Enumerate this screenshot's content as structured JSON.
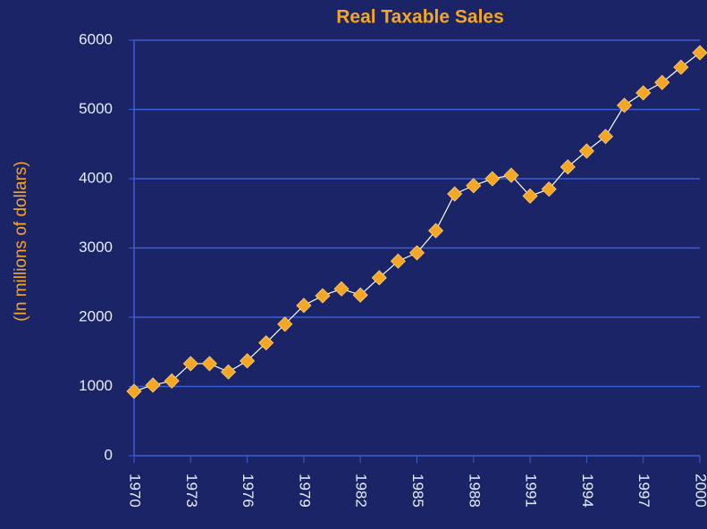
{
  "chart_data": {
    "type": "line",
    "title": "Real Taxable Sales",
    "y_label": "(In millions of dollars)",
    "x": [
      1970,
      1971,
      1972,
      1973,
      1974,
      1975,
      1976,
      1977,
      1978,
      1979,
      1980,
      1981,
      1982,
      1983,
      1984,
      1985,
      1986,
      1987,
      1988,
      1989,
      1990,
      1991,
      1992,
      1993,
      1994,
      1995,
      1996,
      1997,
      1998,
      1999,
      2000
    ],
    "series": [
      {
        "color": "#f5a623",
        "line_color": "#ffffff",
        "values": [
          930,
          1020,
          1080,
          1330,
          1330,
          1210,
          1370,
          1630,
          1900,
          2170,
          2310,
          2410,
          2320,
          2570,
          2810,
          2930,
          3250,
          3780,
          3900,
          4000,
          4050,
          3750,
          3850,
          4170,
          4400,
          4610,
          5060,
          5240,
          5390,
          5610,
          5820
        ]
      }
    ],
    "xlim": [
      1970,
      2000
    ],
    "xticks": [
      1970,
      1973,
      1976,
      1979,
      1982,
      1985,
      1988,
      1991,
      1994,
      1997,
      2000
    ],
    "ylim": [
      0,
      6000
    ],
    "yticks": [
      0,
      1000,
      2000,
      3000,
      4000,
      5000,
      6000
    ],
    "grid": true
  }
}
